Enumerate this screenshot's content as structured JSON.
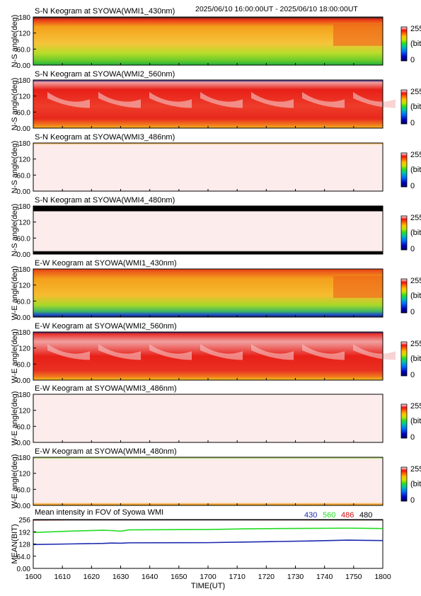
{
  "header": {
    "time_range": "2025/06/10 16:00:00UT - 2025/06/10 18:00:00UT"
  },
  "colorbar": {
    "max_label": "255",
    "unit_label": "(bit)",
    "min_label": "0"
  },
  "chart_data": [
    {
      "type": "heatmap",
      "title": "S-N Keogram at SYOWA(WMI1_430nm)",
      "ylabel": "N-S angle(deg)",
      "yticks": [
        "0.00",
        "60.0",
        "120",
        "180"
      ],
      "ylim": [
        0,
        180
      ],
      "xlim": [
        1600,
        1800
      ],
      "colorscale": "rainbow-to-white",
      "dominant_colors": [
        "#f5a81e",
        "#ec5818",
        "#88d028",
        "#181818"
      ],
      "value_range_bit": [
        60,
        190
      ]
    },
    {
      "type": "heatmap",
      "title": "S-N Keogram at SYOWA(WMI2_560nm)",
      "ylabel": "N-S angle(deg)",
      "yticks": [
        "0.00",
        "60.0",
        "120",
        "180"
      ],
      "ylim": [
        0,
        180
      ],
      "xlim": [
        1600,
        1800
      ],
      "colorscale": "rainbow-to-white",
      "dominant_colors": [
        "#e82018",
        "#f3b6b6",
        "#f5a81e"
      ],
      "value_range_bit": [
        150,
        255
      ]
    },
    {
      "type": "heatmap",
      "title": "S-N Keogram at SYOWA(WMI3_486nm)",
      "ylabel": "N-S angle(deg)",
      "yticks": [
        "0.00",
        "60.0",
        "120",
        "180"
      ],
      "ylim": [
        0,
        180
      ],
      "xlim": [
        1600,
        1800
      ],
      "colorscale": "rainbow-to-white",
      "dominant_colors": [
        "#fceceb"
      ],
      "value_range_bit": [
        250,
        255
      ]
    },
    {
      "type": "heatmap",
      "title": "S-N Keogram at SYOWA(WMI4_480nm)",
      "ylabel": "N-S angle(deg)",
      "yticks": [
        "0.00",
        "60.0",
        "120",
        "180"
      ],
      "ylim": [
        0,
        180
      ],
      "xlim": [
        1600,
        1800
      ],
      "colorscale": "rainbow-to-white",
      "dominant_colors": [
        "#fceceb",
        "#000000"
      ],
      "value_range_bit": [
        250,
        255
      ]
    },
    {
      "type": "heatmap",
      "title": "E-W Keogram at SYOWA(WMI1_430nm)",
      "ylabel": "W-E angle(deg)",
      "yticks": [
        "0.00",
        "60.0",
        "120",
        "180"
      ],
      "ylim": [
        0,
        180
      ],
      "xlim": [
        1600,
        1800
      ],
      "colorscale": "rainbow-to-white",
      "dominant_colors": [
        "#f5a81e",
        "#e83018",
        "#88d028",
        "#2040c0"
      ],
      "value_range_bit": [
        40,
        200
      ]
    },
    {
      "type": "heatmap",
      "title": "E-W Keogram at SYOWA(WMI2_560nm)",
      "ylabel": "W-E angle(deg)",
      "yticks": [
        "0.00",
        "60.0",
        "120",
        "180"
      ],
      "ylim": [
        0,
        180
      ],
      "xlim": [
        1600,
        1800
      ],
      "colorscale": "rainbow-to-white",
      "dominant_colors": [
        "#e82018",
        "#f3b6b6",
        "#f5a81e"
      ],
      "value_range_bit": [
        150,
        255
      ]
    },
    {
      "type": "heatmap",
      "title": "E-W Keogram at SYOWA(WMI3_486nm)",
      "ylabel": "W-E angle(deg)",
      "yticks": [
        "0.00",
        "60.0",
        "120",
        "180"
      ],
      "ylim": [
        0,
        180
      ],
      "xlim": [
        1600,
        1800
      ],
      "colorscale": "rainbow-to-white",
      "dominant_colors": [
        "#fceceb"
      ],
      "value_range_bit": [
        250,
        255
      ]
    },
    {
      "type": "heatmap",
      "title": "E-W Keogram at SYOWA(WMI4_480nm)",
      "ylabel": "W-E angle(deg)",
      "yticks": [
        "0.00",
        "60.0",
        "120",
        "180"
      ],
      "ylim": [
        0,
        180
      ],
      "xlim": [
        1600,
        1800
      ],
      "colorscale": "rainbow-to-white",
      "dominant_colors": [
        "#fceceb",
        "#88d028",
        "#f5a81e"
      ],
      "value_range_bit": [
        250,
        255
      ]
    },
    {
      "type": "line",
      "title": "Mean intensity in FOV of Syowa WMI",
      "xlabel": "TIME(UT)",
      "ylabel": "MEAN(BIT)",
      "xticks": [
        "1600",
        "1610",
        "1620",
        "1630",
        "1640",
        "1650",
        "1700",
        "1710",
        "1720",
        "1730",
        "1740",
        "1750",
        "1800"
      ],
      "yticks": [
        "0.00",
        "64.0",
        "128",
        "192",
        "256"
      ],
      "ylim": [
        0,
        256
      ],
      "xlim": [
        1600,
        1800
      ],
      "x": [
        1600,
        1620,
        1640,
        1645,
        1650,
        1655,
        1700,
        1720,
        1740,
        1760,
        1780,
        1800
      ],
      "series": [
        {
          "name": "430",
          "color": "#1c2ab0",
          "values": [
            125,
            128,
            131,
            133,
            132,
            134,
            135,
            138,
            141,
            144,
            148,
            146
          ]
        },
        {
          "name": "560",
          "color": "#22dd22",
          "values": [
            188,
            195,
            200,
            198,
            195,
            202,
            204,
            207,
            209,
            210,
            211,
            209
          ]
        },
        {
          "name": "486",
          "color": "#cc1111",
          "values": [
            254,
            255,
            255,
            255,
            255,
            255,
            255,
            255,
            255,
            255,
            255,
            255
          ]
        },
        {
          "name": "480",
          "color": "#000000",
          "values": [
            255,
            255,
            255,
            255,
            255,
            255,
            255,
            255,
            255,
            255,
            255,
            255
          ]
        }
      ],
      "grid": false
    }
  ]
}
